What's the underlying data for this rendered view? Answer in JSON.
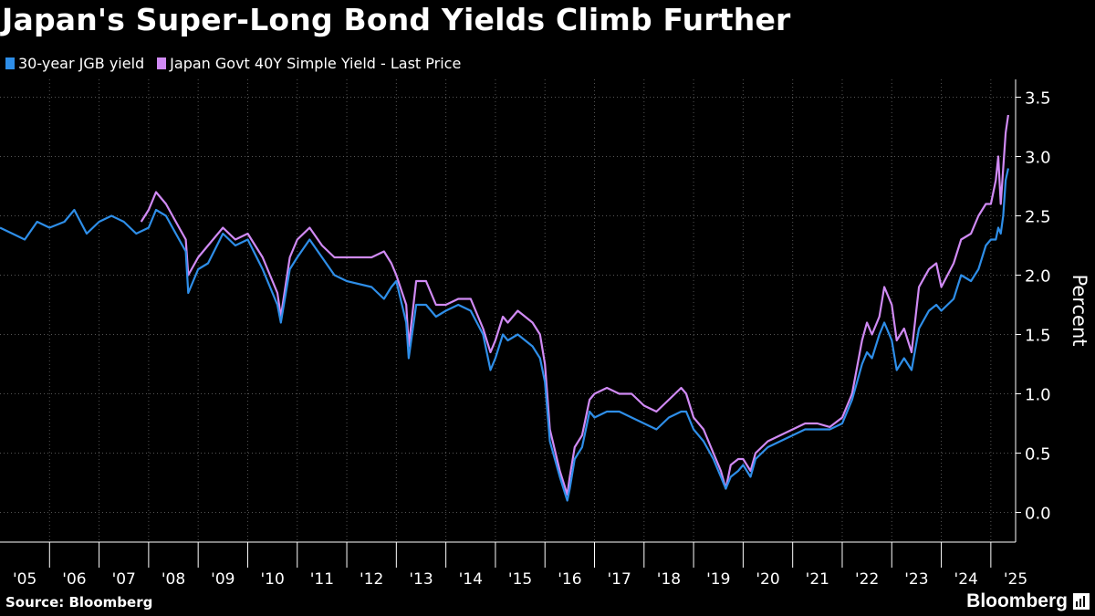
{
  "title": "Japan's Super-Long Bond Yields Climb Further",
  "source": "Source: Bloomberg",
  "brand": "Bloomberg",
  "colors": {
    "series1": "#2e8ee8",
    "series2": "#d08af4",
    "background": "#000000",
    "grid": "#555555",
    "text": "#ffffff"
  },
  "chart_data": {
    "type": "line",
    "title": "Japan's Super-Long Bond Yields Climb Further",
    "xlabel": "",
    "ylabel": "Percent",
    "xlim": [
      2005.0,
      2025.5
    ],
    "ylim": [
      -0.25,
      3.65
    ],
    "y_ticks": [
      0.0,
      0.5,
      1.0,
      1.5,
      2.0,
      2.5,
      3.0,
      3.5
    ],
    "y_tick_labels": [
      "0.0",
      "0.5",
      "1.0",
      "1.5",
      "2.0",
      "2.5",
      "3.0",
      "3.5"
    ],
    "x_tick_labels": [
      "'05",
      "'06",
      "'07",
      "'08",
      "'09",
      "'10",
      "'11",
      "'12",
      "'13",
      "'14",
      "'15",
      "'16",
      "'17",
      "'18",
      "'19",
      "'20",
      "'21",
      "'22",
      "'23",
      "'24",
      "'25"
    ],
    "grid": "dotted",
    "legend": "top-left",
    "series": [
      {
        "name": "30-year JGB yield",
        "color": "#2e8ee8",
        "x": [
          2005.0,
          2005.25,
          2005.5,
          2005.75,
          2006.0,
          2006.3,
          2006.5,
          2006.75,
          2007.0,
          2007.25,
          2007.5,
          2007.75,
          2008.0,
          2008.15,
          2008.35,
          2008.55,
          2008.75,
          2008.8,
          2009.0,
          2009.2,
          2009.5,
          2009.75,
          2010.0,
          2010.3,
          2010.6,
          2010.67,
          2010.85,
          2011.0,
          2011.25,
          2011.5,
          2011.75,
          2012.0,
          2012.5,
          2012.75,
          2012.9,
          2013.0,
          2013.2,
          2013.25,
          2013.4,
          2013.6,
          2013.8,
          2014.0,
          2014.25,
          2014.5,
          2014.75,
          2014.9,
          2015.0,
          2015.15,
          2015.25,
          2015.45,
          2015.75,
          2015.9,
          2016.0,
          2016.1,
          2016.3,
          2016.45,
          2016.5,
          2016.6,
          2016.75,
          2016.9,
          2017.0,
          2017.25,
          2017.5,
          2017.75,
          2018.0,
          2018.25,
          2018.5,
          2018.75,
          2018.85,
          2019.0,
          2019.2,
          2019.4,
          2019.55,
          2019.65,
          2019.75,
          2019.9,
          2020.0,
          2020.15,
          2020.25,
          2020.5,
          2020.75,
          2021.0,
          2021.25,
          2021.5,
          2021.75,
          2022.0,
          2022.2,
          2022.4,
          2022.5,
          2022.6,
          2022.75,
          2022.85,
          2023.0,
          2023.1,
          2023.25,
          2023.4,
          2023.55,
          2023.75,
          2023.9,
          2024.0,
          2024.25,
          2024.4,
          2024.6,
          2024.75,
          2024.9,
          2025.0,
          2025.1,
          2025.15,
          2025.2,
          2025.25,
          2025.3,
          2025.35
        ],
        "y": [
          2.4,
          2.35,
          2.3,
          2.45,
          2.4,
          2.45,
          2.55,
          2.35,
          2.45,
          2.5,
          2.45,
          2.35,
          2.4,
          2.55,
          2.5,
          2.35,
          2.2,
          1.85,
          2.05,
          2.1,
          2.35,
          2.25,
          2.3,
          2.05,
          1.75,
          1.6,
          2.05,
          2.15,
          2.3,
          2.15,
          2.0,
          1.95,
          1.9,
          1.8,
          1.9,
          1.95,
          1.6,
          1.3,
          1.75,
          1.75,
          1.65,
          1.7,
          1.75,
          1.7,
          1.5,
          1.2,
          1.3,
          1.5,
          1.45,
          1.5,
          1.4,
          1.3,
          1.1,
          0.6,
          0.3,
          0.1,
          0.2,
          0.45,
          0.55,
          0.85,
          0.8,
          0.85,
          0.85,
          0.8,
          0.75,
          0.7,
          0.8,
          0.85,
          0.85,
          0.7,
          0.6,
          0.45,
          0.3,
          0.2,
          0.3,
          0.35,
          0.4,
          0.3,
          0.45,
          0.55,
          0.6,
          0.65,
          0.7,
          0.7,
          0.7,
          0.75,
          0.95,
          1.25,
          1.35,
          1.3,
          1.5,
          1.6,
          1.45,
          1.2,
          1.3,
          1.2,
          1.55,
          1.7,
          1.75,
          1.7,
          1.8,
          2.0,
          1.95,
          2.05,
          2.25,
          2.3,
          2.3,
          2.4,
          2.35,
          2.5,
          2.8,
          2.9
        ]
      },
      {
        "name": "Japan Govt 40Y Simple Yield - Last Price",
        "color": "#d08af4",
        "x": [
          2007.85,
          2008.0,
          2008.15,
          2008.35,
          2008.55,
          2008.75,
          2008.8,
          2009.0,
          2009.2,
          2009.5,
          2009.75,
          2010.0,
          2010.3,
          2010.6,
          2010.67,
          2010.85,
          2011.0,
          2011.25,
          2011.5,
          2011.75,
          2012.0,
          2012.5,
          2012.75,
          2012.9,
          2013.0,
          2013.2,
          2013.25,
          2013.4,
          2013.6,
          2013.8,
          2014.0,
          2014.25,
          2014.5,
          2014.75,
          2014.9,
          2015.0,
          2015.15,
          2015.25,
          2015.45,
          2015.75,
          2015.9,
          2016.0,
          2016.1,
          2016.3,
          2016.45,
          2016.5,
          2016.6,
          2016.75,
          2016.9,
          2017.0,
          2017.25,
          2017.5,
          2017.75,
          2018.0,
          2018.25,
          2018.5,
          2018.75,
          2018.85,
          2019.0,
          2019.2,
          2019.4,
          2019.55,
          2019.65,
          2019.75,
          2019.9,
          2020.0,
          2020.15,
          2020.25,
          2020.5,
          2020.75,
          2021.0,
          2021.25,
          2021.5,
          2021.75,
          2022.0,
          2022.2,
          2022.4,
          2022.5,
          2022.6,
          2022.75,
          2022.85,
          2023.0,
          2023.1,
          2023.25,
          2023.4,
          2023.55,
          2023.75,
          2023.9,
          2024.0,
          2024.25,
          2024.4,
          2024.6,
          2024.75,
          2024.9,
          2025.0,
          2025.1,
          2025.15,
          2025.2,
          2025.25,
          2025.3,
          2025.35
        ],
        "y": [
          2.45,
          2.55,
          2.7,
          2.6,
          2.45,
          2.3,
          2.0,
          2.15,
          2.25,
          2.4,
          2.3,
          2.35,
          2.15,
          1.85,
          1.65,
          2.15,
          2.3,
          2.4,
          2.25,
          2.15,
          2.15,
          2.15,
          2.2,
          2.1,
          2.0,
          1.75,
          1.4,
          1.95,
          1.95,
          1.75,
          1.75,
          1.8,
          1.8,
          1.55,
          1.35,
          1.45,
          1.65,
          1.6,
          1.7,
          1.6,
          1.5,
          1.25,
          0.7,
          0.35,
          0.15,
          0.3,
          0.55,
          0.65,
          0.95,
          1.0,
          1.05,
          1.0,
          1.0,
          0.9,
          0.85,
          0.95,
          1.05,
          1.0,
          0.8,
          0.7,
          0.5,
          0.35,
          0.2,
          0.4,
          0.45,
          0.45,
          0.35,
          0.5,
          0.6,
          0.65,
          0.7,
          0.75,
          0.75,
          0.72,
          0.8,
          1.0,
          1.45,
          1.6,
          1.5,
          1.65,
          1.9,
          1.75,
          1.45,
          1.55,
          1.35,
          1.9,
          2.05,
          2.1,
          1.9,
          2.1,
          2.3,
          2.35,
          2.5,
          2.6,
          2.6,
          2.8,
          3.0,
          2.6,
          2.9,
          3.2,
          3.35
        ]
      }
    ]
  }
}
